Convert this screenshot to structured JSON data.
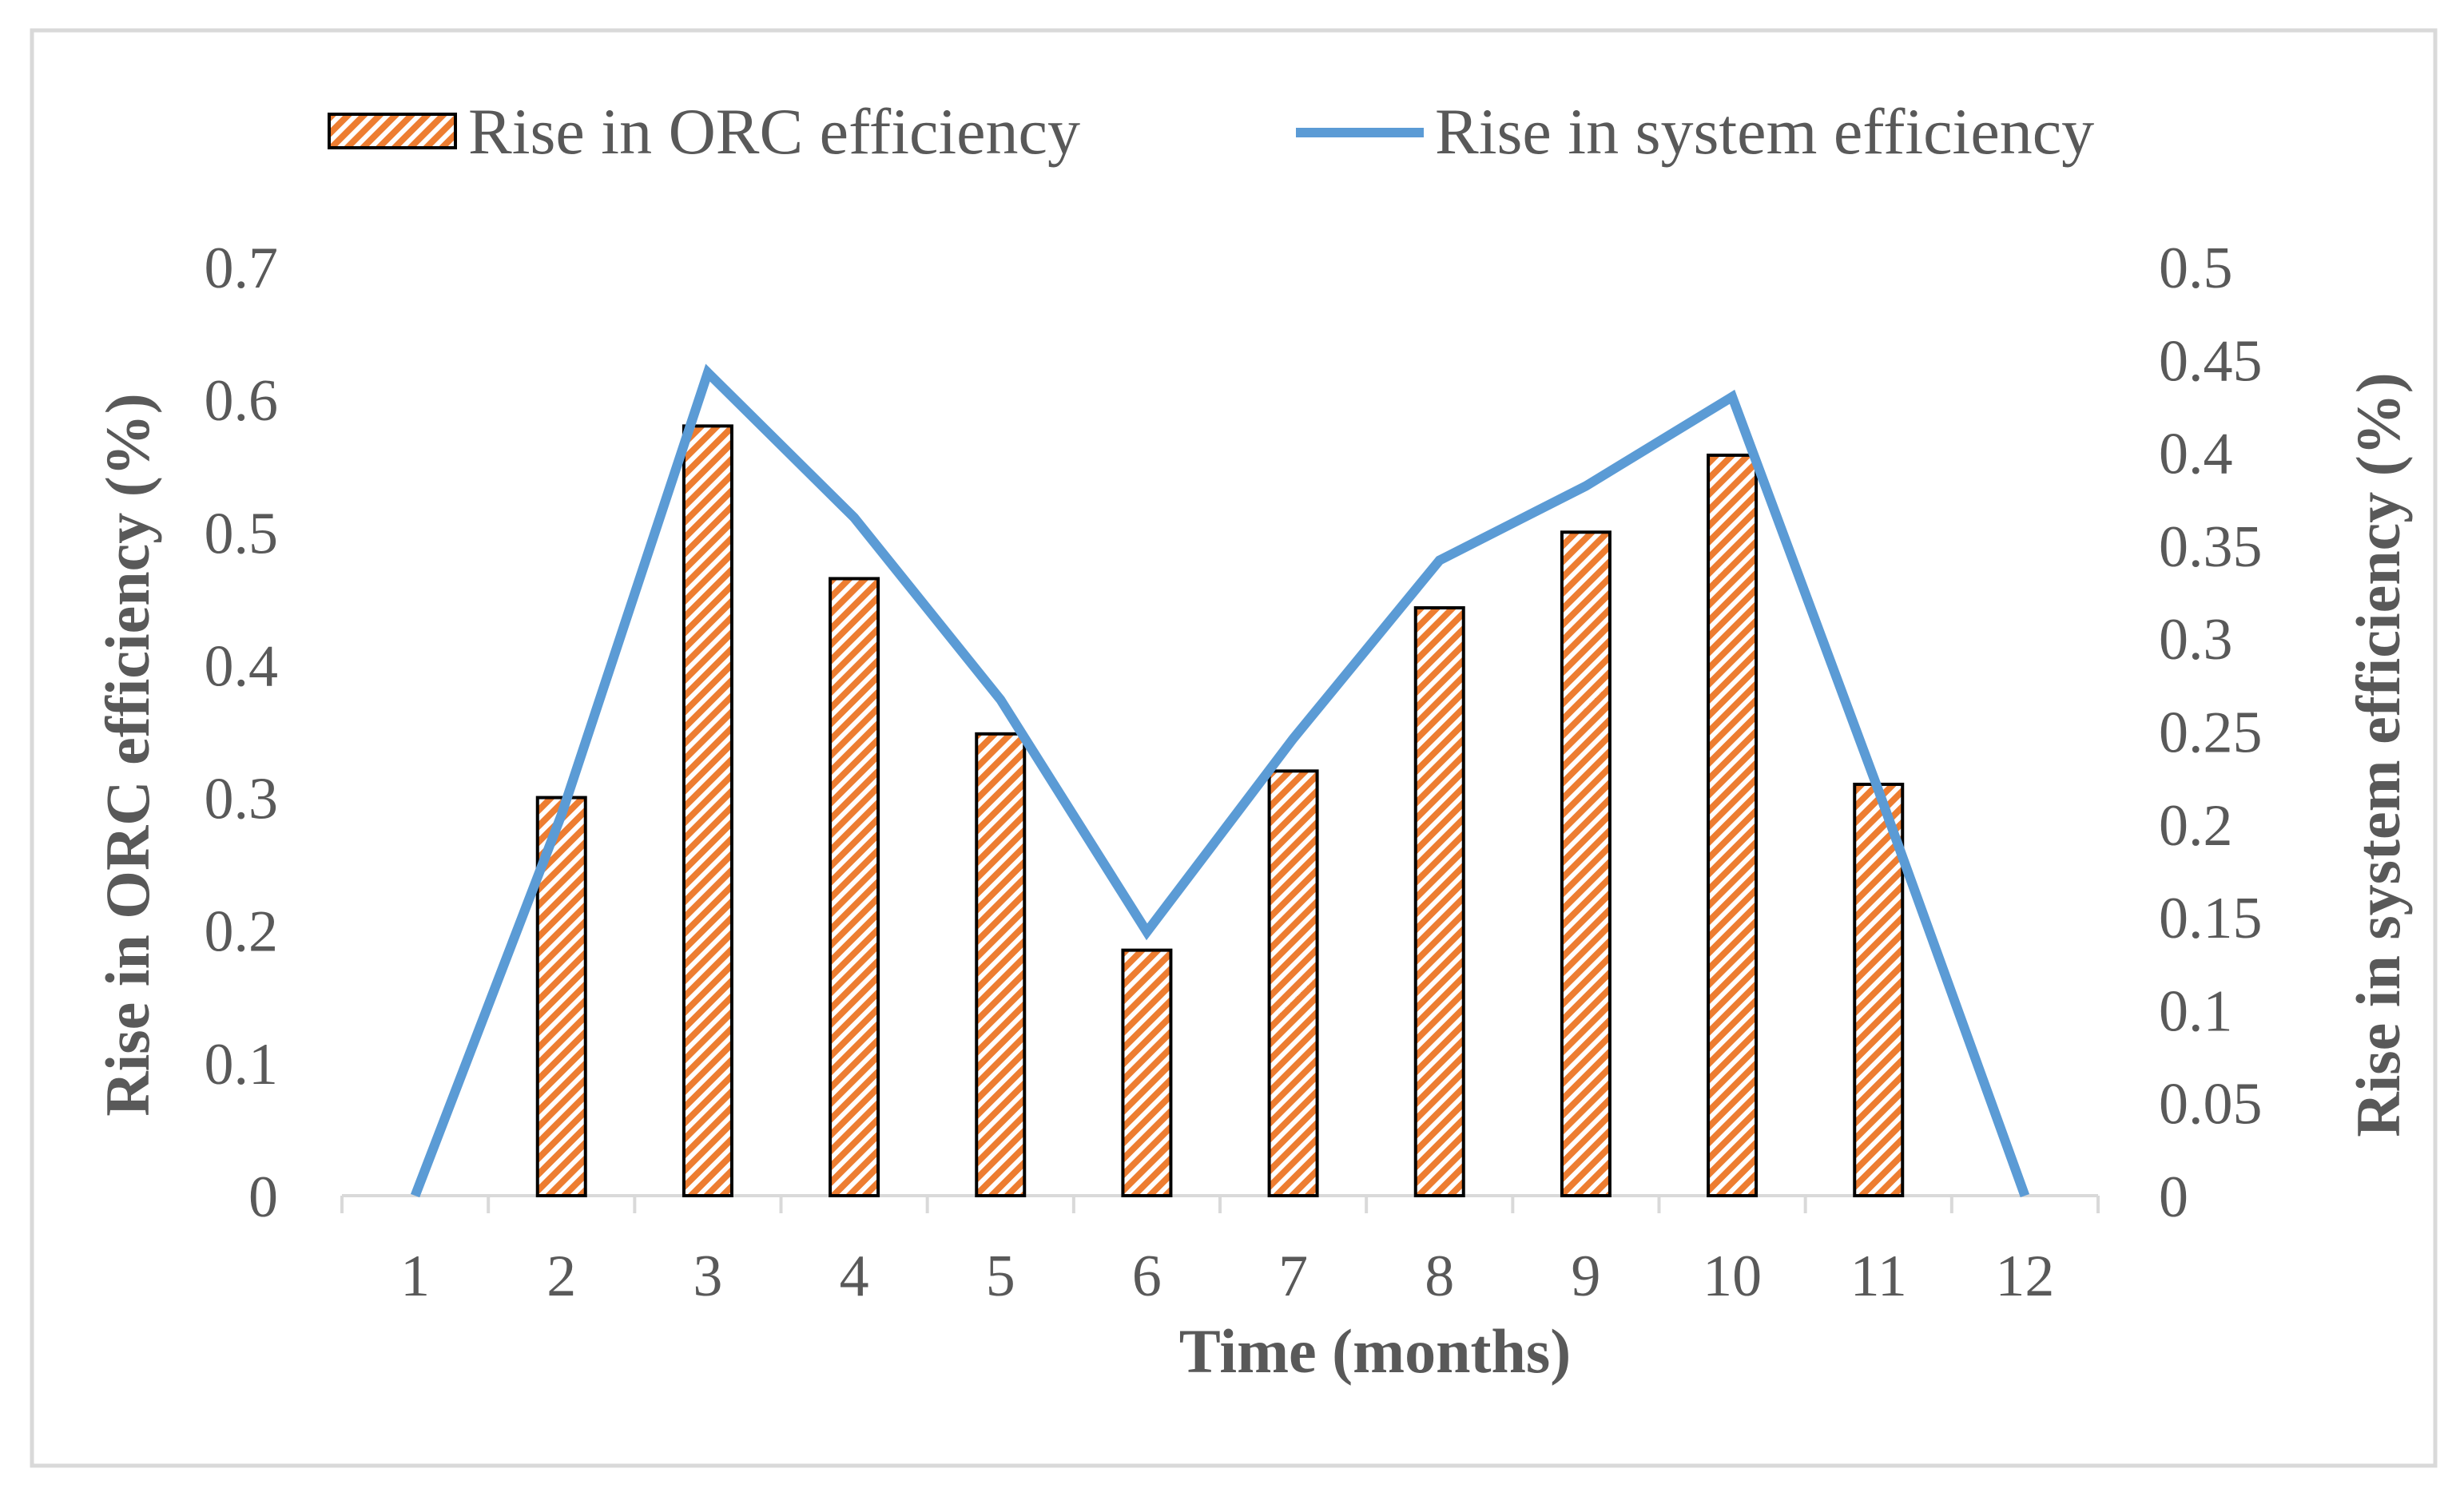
{
  "chart_data": {
    "type": "bar",
    "title": "",
    "categories": [
      "1",
      "2",
      "3",
      "4",
      "5",
      "6",
      "7",
      "8",
      "9",
      "10",
      "11",
      "12"
    ],
    "xlabel": "Time (months)",
    "ylabel": "Rise in ORC efficiency (%)",
    "y2label": "Rise in system efficiency (%)",
    "ylim": [
      0,
      0.7
    ],
    "y2lim": [
      0,
      0.5
    ],
    "yticks": [
      "0",
      "0.1",
      "0.2",
      "0.3",
      "0.4",
      "0.5",
      "0.6",
      "0.7"
    ],
    "y2ticks": [
      "0",
      "0.05",
      "0.1",
      "0.15",
      "0.2",
      "0.25",
      "0.3",
      "0.35",
      "0.4",
      "0.45",
      "0.5"
    ],
    "grid": false,
    "legend_position": "top",
    "series": [
      {
        "name": "Rise in ORC efficiency",
        "type": "bar",
        "axis": "left",
        "pattern": "orange-hatched",
        "values": [
          0,
          0.3,
          0.58,
          0.465,
          0.348,
          0.185,
          0.32,
          0.443,
          0.5,
          0.558,
          0.31,
          0
        ]
      },
      {
        "name": "Rise in system efficiency",
        "type": "line",
        "axis": "right",
        "values": [
          0,
          0.205,
          0.443,
          0.365,
          0.267,
          0.142,
          0.246,
          0.342,
          0.382,
          0.43,
          0.218,
          0
        ]
      }
    ],
    "colors": {
      "bar_fill": "#ed7d31",
      "bar_stroke": "#000000",
      "line": "#5b9bd5",
      "axis": "#d9d9d9",
      "text": "#595959",
      "frame": "#d9d9d9"
    }
  }
}
